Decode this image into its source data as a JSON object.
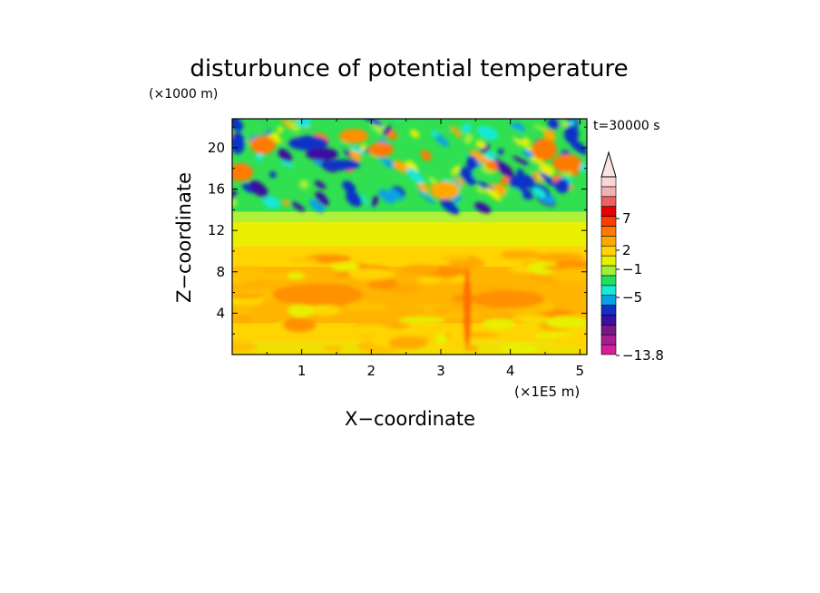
{
  "chart_data": {
    "type": "heatmap",
    "title": "disturbunce of potential temperature",
    "time_label": "t=30000 s",
    "xlabel": "X−coordinate",
    "ylabel": "Z−coordinate",
    "x_unit": "(×1E5 m)",
    "y_unit": "(×1000 m)",
    "xlim": [
      0,
      5.1
    ],
    "ylim": [
      0,
      22.8
    ],
    "x_ticks": [
      "1",
      "2",
      "3",
      "4",
      "5"
    ],
    "y_ticks": [
      "4",
      "8",
      "12",
      "16",
      "20"
    ],
    "colorbar": {
      "label_values": [
        "7",
        "2",
        "−1",
        "−5",
        "−13.8"
      ],
      "colors": [
        "#d41e9a",
        "#a81c92",
        "#7a168c",
        "#3a10a0",
        "#1030c8",
        "#0aa0e8",
        "#18e8d8",
        "#20e060",
        "#a0f038",
        "#e8f000",
        "#ffd400",
        "#ffa800",
        "#ff7a00",
        "#ff3c00",
        "#e80000",
        "#f06060",
        "#f5b0b0",
        "#fad6d6"
      ]
    },
    "field_layers": [
      {
        "range": [
          0,
          1.2
        ],
        "color": "#f0e000"
      },
      {
        "range": [
          1.2,
          3.0
        ],
        "color": "#ffd400"
      },
      {
        "range": [
          3.0,
          8.5
        ],
        "color": "#ffb400"
      },
      {
        "range": [
          8.5,
          10.5
        ],
        "color": "#ffd400"
      },
      {
        "range": [
          10.5,
          12.8
        ],
        "color": "#e8f000"
      },
      {
        "range": [
          12.8,
          13.8
        ],
        "color": "#b0f038"
      },
      {
        "range": [
          13.8,
          22.8
        ],
        "color": "#30e050"
      }
    ]
  }
}
